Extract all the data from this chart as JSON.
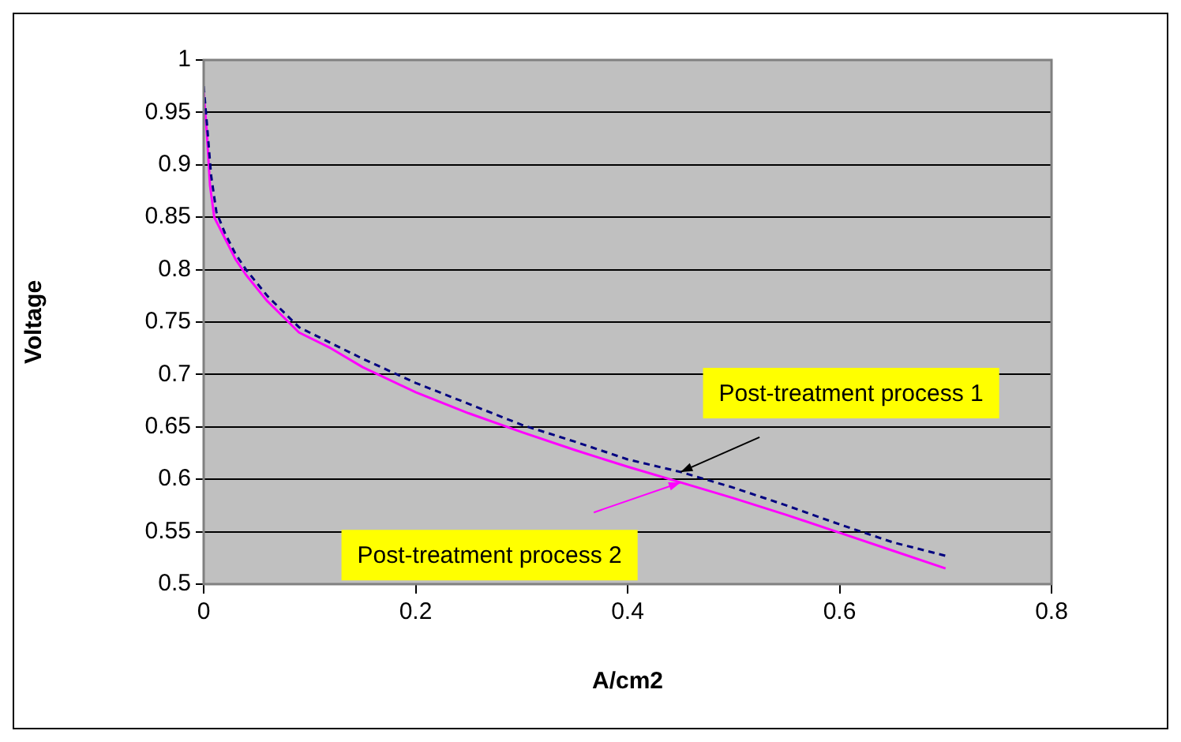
{
  "chart_data": {
    "type": "line",
    "xlabel": "A/cm2",
    "ylabel": "Voltage",
    "xlim": [
      0,
      0.8
    ],
    "xticks": [
      0,
      0.2,
      0.4,
      0.6,
      0.8
    ],
    "ylim": [
      0.5,
      1
    ],
    "yticks": [
      0.5,
      0.55,
      0.6,
      0.65,
      0.7,
      0.75,
      0.8,
      0.85,
      0.9,
      0.95,
      1
    ],
    "grid": "y",
    "legend": false,
    "marker": "none",
    "series": [
      {
        "color": "#000080",
        "line_style": "dashed",
        "x": [
          0,
          0.003,
          0.007,
          0.012,
          0.02,
          0.03,
          0.04,
          0.06,
          0.09,
          0.12,
          0.15,
          0.2,
          0.25,
          0.3,
          0.35,
          0.4,
          0.45,
          0.5,
          0.55,
          0.6,
          0.65,
          0.7
        ],
        "values": [
          0.975,
          0.94,
          0.89,
          0.855,
          0.835,
          0.815,
          0.8,
          0.775,
          0.745,
          0.73,
          0.715,
          0.692,
          0.672,
          0.652,
          0.636,
          0.619,
          0.607,
          0.592,
          0.575,
          0.557,
          0.54,
          0.527
        ]
      },
      {
        "color": "#ff00ff",
        "line_style": "solid",
        "x": [
          0,
          0.003,
          0.006,
          0.01,
          0.02,
          0.03,
          0.04,
          0.06,
          0.09,
          0.12,
          0.15,
          0.2,
          0.25,
          0.3,
          0.35,
          0.4,
          0.45,
          0.5,
          0.55,
          0.6,
          0.65,
          0.7
        ],
        "values": [
          0.97,
          0.93,
          0.88,
          0.85,
          0.83,
          0.81,
          0.795,
          0.77,
          0.74,
          0.725,
          0.707,
          0.683,
          0.663,
          0.645,
          0.628,
          0.612,
          0.597,
          0.582,
          0.566,
          0.549,
          0.532,
          0.515
        ]
      }
    ],
    "annotations": [
      {
        "text": "Post-treatment process 1",
        "x": 0.45,
        "y": 0.607
      },
      {
        "text": "Post-treatment process 2",
        "x": 0.45,
        "y": 0.597
      }
    ]
  }
}
